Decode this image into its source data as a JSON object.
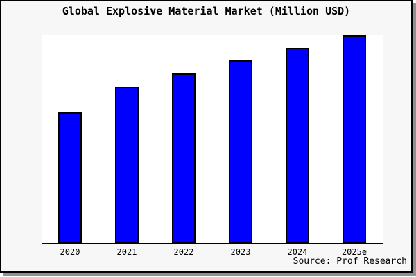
{
  "title": "Global Explosive Material Market (Million USD)",
  "source_label": "Source: Prof Research",
  "chart_data": {
    "type": "bar",
    "title": "Global Explosive Material Market (Million USD)",
    "categories": [
      "2020",
      "2021",
      "2022",
      "2023",
      "2024",
      "2025e"
    ],
    "values": [
      189,
      226,
      245,
      264,
      282,
      300
    ],
    "xlabel": "",
    "ylabel": "",
    "ylim": [
      0,
      301
    ],
    "grid": false,
    "legend": false,
    "annotations": [
      "Source: Prof Research"
    ],
    "bar_color": "#0000ff",
    "bar_border_color": "#000000"
  },
  "colors": {
    "background": "#f7f7f7",
    "plot_background": "#ffffff",
    "bar": "#0000ff",
    "axis": "#000000",
    "text": "#000000",
    "frame_border": "#000000",
    "frame_shadow": "#909090"
  }
}
